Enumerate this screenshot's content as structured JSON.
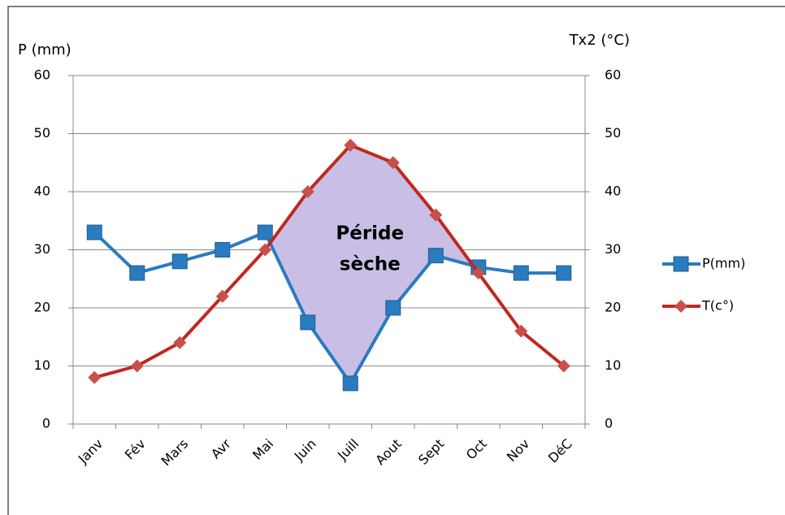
{
  "chart_data": {
    "type": "line",
    "y_label": "P (mm)",
    "y2_label": "Tx2 (°C)",
    "annotation": [
      "Péride",
      "sèche"
    ],
    "categories": [
      "Janv",
      "Fév",
      "Mars",
      "Avr",
      "Mai",
      "Juin",
      "Juill",
      "Aout",
      "Sept",
      "Oct",
      "Nov",
      "DéC"
    ],
    "series": [
      {
        "name": "P(mm)",
        "color": "#2a7bbf",
        "marker": "square",
        "values": [
          33,
          26,
          28,
          30,
          33,
          17.5,
          7,
          20,
          29,
          27,
          26,
          26
        ]
      },
      {
        "name": "T(c°)",
        "color": "#c0281e",
        "marker": "diamond",
        "axis": "y2",
        "values": [
          8,
          10,
          14,
          22,
          30,
          40,
          48,
          45,
          36,
          26,
          16,
          10
        ]
      }
    ],
    "fill_color": "#c9bfe6",
    "ylim": [
      0,
      60
    ],
    "yticks": [
      0,
      10,
      20,
      30,
      40,
      50,
      60
    ],
    "y2lim": [
      0,
      60
    ],
    "y2ticks": [
      0,
      10,
      20,
      30,
      40,
      50,
      60
    ],
    "grid": true,
    "legend": "right"
  }
}
